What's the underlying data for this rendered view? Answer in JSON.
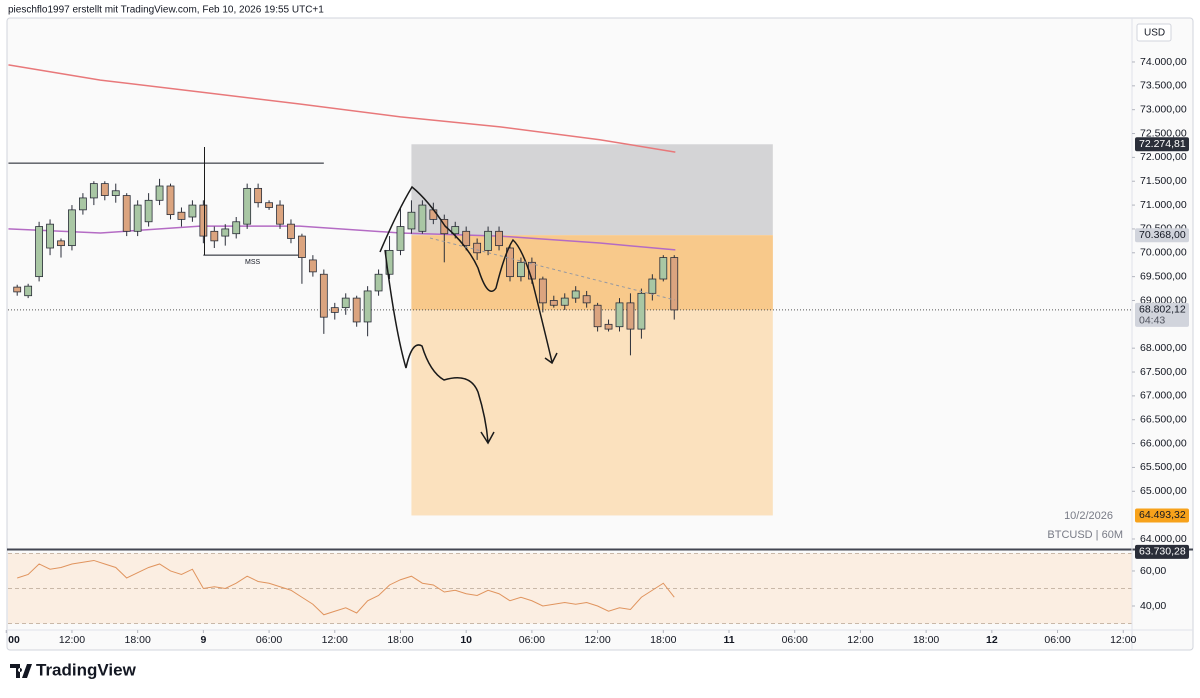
{
  "header": "pieschflo1997 erstellt mit TradingView.com, Feb 10, 2026 19:55 UTC+1",
  "brand": "TradingView",
  "chart_data": [
    {
      "type": "candlestick",
      "currency": "USD",
      "symbol": "BTCUSD | 60M",
      "date_label": "10/2/2026",
      "up_color": "#a9c7a4",
      "down_color": "#dba47f",
      "x": [
        7,
        8,
        9,
        10,
        11,
        12,
        13,
        14,
        15,
        16,
        17,
        18,
        19,
        20,
        21,
        22,
        23,
        24,
        25,
        26,
        27,
        28,
        29,
        30,
        31,
        32,
        33,
        34,
        35,
        36,
        37,
        38,
        39,
        40,
        41,
        42,
        43,
        44,
        45,
        46,
        47,
        48,
        49,
        50,
        51,
        52,
        53,
        54,
        55,
        56,
        57,
        58,
        59,
        60,
        61,
        62,
        63,
        64,
        65,
        66,
        67
      ],
      "open": [
        69280,
        69100,
        69500,
        70100,
        70250,
        70150,
        70900,
        71150,
        71450,
        71200,
        71200,
        70450,
        70650,
        71100,
        71400,
        70850,
        70750,
        71000,
        70450,
        70350,
        70400,
        70600,
        71350,
        71050,
        71000,
        70600,
        70350,
        69850,
        69550,
        68850,
        68850,
        69050,
        68550,
        69200,
        69550,
        70050,
        70500,
        70450,
        70900,
        70700,
        70400,
        70450,
        70200,
        70050,
        70450,
        70100,
        69500,
        69800,
        69450,
        69000,
        68900,
        69050,
        69100,
        68900,
        68500,
        68450,
        68950,
        68400,
        69150,
        69450,
        69900
      ],
      "high": [
        69330,
        69350,
        70650,
        70700,
        70300,
        71000,
        71250,
        71500,
        71500,
        71450,
        71250,
        71100,
        71250,
        71550,
        71450,
        70950,
        71100,
        71100,
        70550,
        70600,
        70750,
        71450,
        71450,
        71100,
        71100,
        70700,
        70400,
        69950,
        69650,
        68950,
        69150,
        69100,
        69300,
        69650,
        70350,
        70950,
        71100,
        71100,
        71050,
        70800,
        70650,
        70550,
        70300,
        70550,
        70550,
        70150,
        69900,
        69900,
        69500,
        69100,
        69150,
        69300,
        69200,
        68950,
        68600,
        69050,
        69150,
        69250,
        69550,
        69950,
        69950
      ],
      "low": [
        69100,
        69050,
        69400,
        69950,
        69900,
        70050,
        70800,
        71000,
        71100,
        71050,
        70350,
        70350,
        70550,
        71000,
        70700,
        70550,
        70650,
        70200,
        70100,
        70150,
        70300,
        70500,
        70950,
        70900,
        70500,
        70200,
        69350,
        69500,
        68300,
        68600,
        68700,
        68450,
        68250,
        69100,
        69450,
        69950,
        70400,
        70400,
        70600,
        69800,
        70300,
        70050,
        69850,
        69950,
        70050,
        69400,
        69400,
        69350,
        68750,
        68850,
        68800,
        68950,
        68850,
        68350,
        68350,
        68350,
        67850,
        68200,
        69000,
        69400,
        68600
      ],
      "close": [
        69180,
        69300,
        70550,
        70600,
        70150,
        70900,
        71150,
        71450,
        71200,
        71300,
        70450,
        71000,
        71100,
        71400,
        70800,
        70700,
        71000,
        70350,
        70250,
        70500,
        70650,
        71350,
        71050,
        70950,
        70600,
        70300,
        69900,
        69600,
        68650,
        68750,
        69050,
        68550,
        69200,
        69550,
        70050,
        70550,
        70850,
        71000,
        70700,
        70400,
        70550,
        70150,
        70000,
        70450,
        70150,
        69500,
        69800,
        69450,
        68950,
        68900,
        69050,
        69200,
        68950,
        68450,
        68400,
        68950,
        68400,
        69150,
        69450,
        69900,
        68802.12
      ],
      "overlays": [
        {
          "color": "#e8787a",
          "x": [
            6.2,
            14.6,
            23.7,
            32.8,
            42,
            51.1,
            60.2,
            67.1
          ],
          "values": [
            73940,
            73620,
            73370,
            73120,
            72850,
            72640,
            72370,
            72110
          ]
        },
        {
          "color": "#b46bc4",
          "x": [
            6.2,
            14.6,
            23.7,
            32.8,
            42,
            51.1,
            60.2,
            67.1
          ],
          "values": [
            70500,
            70415,
            70560,
            70560,
            70415,
            70350,
            70205,
            70060
          ]
        }
      ],
      "position": {
        "x": [
          43,
          76
        ],
        "stop": {
          "value": 72274.81,
          "label": "72.274,81"
        },
        "entry": {
          "value": 70368,
          "label": "70.368,00"
        },
        "target": {
          "value": 64493.32,
          "label": "64.493,32"
        }
      },
      "last": {
        "value": 68802.12,
        "label": "68.802,12",
        "countdown": "04:43"
      },
      "levels": [
        {
          "value": 63730.28,
          "label": "63.730,28"
        }
      ],
      "hline": {
        "x": [
          6.2,
          35
        ],
        "value": 71880
      },
      "mss": {
        "x": [
          24,
          33
        ],
        "value": 69950,
        "label": "MSS"
      },
      "xlim": [
        6.16,
        108.8
      ],
      "xticks": [
        {
          "value": 6,
          "label": "00"
        },
        {
          "value": 12,
          "label": "12:00"
        },
        {
          "value": 18,
          "label": "18:00"
        },
        {
          "value": 24,
          "label": "9"
        },
        {
          "value": 30,
          "label": "06:00"
        },
        {
          "value": 36,
          "label": "12:00"
        },
        {
          "value": 42,
          "label": "18:00"
        },
        {
          "value": 48,
          "label": "10"
        },
        {
          "value": 54,
          "label": "06:00"
        },
        {
          "value": 60,
          "label": "12:00"
        },
        {
          "value": 66,
          "label": "18:00"
        },
        {
          "value": 72,
          "label": "11"
        },
        {
          "value": 78,
          "label": "06:00"
        },
        {
          "value": 84,
          "label": "12:00"
        },
        {
          "value": 90,
          "label": "18:00"
        },
        {
          "value": 96,
          "label": "12"
        },
        {
          "value": 102,
          "label": "06:00"
        },
        {
          "value": 108,
          "label": "12:00"
        }
      ],
      "ylim": [
        63790,
        74922
      ],
      "yticks": [
        {
          "value": 74000,
          "label": "74.000,00"
        },
        {
          "value": 73500,
          "label": "73.500,00"
        },
        {
          "value": 73000,
          "label": "73.000,00"
        },
        {
          "value": 72500,
          "label": "72.500,00"
        },
        {
          "value": 72000,
          "label": "72.000,00"
        },
        {
          "value": 71500,
          "label": "71.500,00"
        },
        {
          "value": 71000,
          "label": "71.000,00"
        },
        {
          "value": 70500,
          "label": "70.500,00"
        },
        {
          "value": 70000,
          "label": "70.000,00"
        },
        {
          "value": 69500,
          "label": "69.500,00"
        },
        {
          "value": 69000,
          "label": "69.000,00"
        },
        {
          "value": 68000,
          "label": "68.000,00"
        },
        {
          "value": 67500,
          "label": "67.500,00"
        },
        {
          "value": 67000,
          "label": "67.000,00"
        },
        {
          "value": 66500,
          "label": "66.500,00"
        },
        {
          "value": 66000,
          "label": "66.000,00"
        },
        {
          "value": 65500,
          "label": "65.500,00"
        },
        {
          "value": 65000,
          "label": "65.000,00"
        },
        {
          "value": 64000,
          "label": "64.000,00"
        }
      ]
    },
    {
      "type": "line",
      "color": "#e0945e",
      "values": [
        56,
        58,
        64,
        61,
        62,
        64,
        65,
        66,
        64,
        62,
        56,
        59,
        62,
        64,
        60,
        58,
        61,
        50,
        51,
        50,
        53,
        57,
        54,
        53,
        51,
        49,
        45,
        41,
        35,
        37,
        39,
        36,
        43,
        46,
        52,
        55,
        57,
        53,
        52,
        48,
        49,
        47,
        46,
        49,
        47,
        43,
        45,
        43,
        40,
        41,
        42,
        41,
        42,
        40,
        37,
        39,
        38,
        45,
        49,
        53,
        45
      ],
      "levels": [
        70,
        50,
        30
      ],
      "ylim": [
        26.3,
        71.4
      ],
      "yticks": [
        {
          "value": 60,
          "label": "60,00"
        },
        {
          "value": 40,
          "label": "40,00"
        }
      ]
    }
  ]
}
